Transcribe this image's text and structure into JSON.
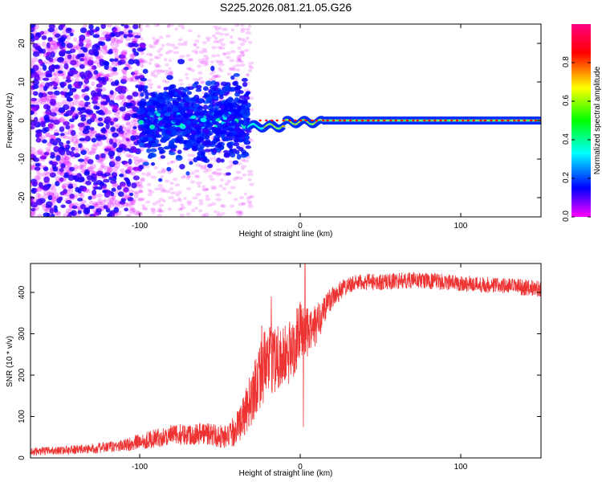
{
  "figure_title": "S225.2026.081.21.05.G26",
  "chart_data": [
    {
      "type": "heatmap",
      "title": "S225.2026.081.21.05.G26",
      "xlabel": "Height of straight line (km)",
      "ylabel": "Frequency (Hz)",
      "xlim": [
        -168,
        150
      ],
      "ylim": [
        -25,
        25
      ],
      "x_ticks": [
        -100,
        0,
        100
      ],
      "y_ticks": [
        -20,
        -10,
        0,
        10,
        20
      ],
      "grid": false,
      "colorbar": {
        "label": "Normalized spectral amplitude",
        "range": [
          0.0,
          1.0
        ],
        "ticks": [
          0.0,
          0.2,
          0.4,
          0.6,
          0.8
        ],
        "tick_labels": [
          "0.0",
          "0.2",
          "0.4",
          "0.6",
          "0.8"
        ],
        "colormap": [
          "#ff00ff",
          "#0000ff",
          "#00ffff",
          "#00ff00",
          "#ffff00",
          "#ff0000",
          "#ff0080"
        ]
      },
      "description_regions": [
        {
          "x_range": [
            -168,
            -100
          ],
          "freq_spread": 25,
          "amplitude": "low, scattered"
        },
        {
          "x_range": [
            -100,
            -35
          ],
          "freq_spread": 10,
          "amplitude": "medium, scattered around 0 Hz"
        },
        {
          "x_range": [
            -35,
            150
          ],
          "freq_spread": 1,
          "amplitude": "high, narrow line at 0 Hz"
        }
      ]
    },
    {
      "type": "line",
      "xlabel": "Height of straight line (km)",
      "ylabel": "SNR (10 * v/v)",
      "xlim": [
        -168,
        150
      ],
      "ylim": [
        0,
        470
      ],
      "x_ticks": [
        -100,
        0,
        100
      ],
      "y_ticks": [
        0,
        100,
        200,
        300,
        400
      ],
      "color": "#ee3333",
      "grid": false,
      "series": [
        {
          "name": "SNR",
          "x": [
            -168,
            -150,
            -130,
            -110,
            -100,
            -80,
            -60,
            -45,
            -40,
            -35,
            -30,
            -25,
            -20,
            -15,
            -10,
            -5,
            0,
            5,
            10,
            15,
            20,
            30,
            40,
            50,
            60,
            70,
            80,
            90,
            100,
            110,
            120,
            130,
            140,
            150
          ],
          "values": [
            15,
            18,
            22,
            30,
            40,
            55,
            60,
            50,
            70,
            100,
            150,
            210,
            230,
            250,
            240,
            260,
            310,
            300,
            320,
            360,
            390,
            420,
            425,
            425,
            428,
            430,
            428,
            425,
            422,
            420,
            418,
            415,
            412,
            410
          ],
          "noise_amplitude": [
            10,
            10,
            12,
            15,
            20,
            25,
            28,
            30,
            40,
            50,
            70,
            90,
            80,
            90,
            80,
            80,
            70,
            60,
            50,
            40,
            30,
            20,
            20,
            20,
            20,
            20,
            20,
            20,
            20,
            20,
            20,
            20,
            20,
            20
          ]
        }
      ],
      "spikes": [
        {
          "x": -24,
          "y": 320
        },
        {
          "x": -18,
          "y": 390
        },
        {
          "x": 3,
          "y": 470
        },
        {
          "x": 2,
          "y": 75
        }
      ]
    }
  ]
}
